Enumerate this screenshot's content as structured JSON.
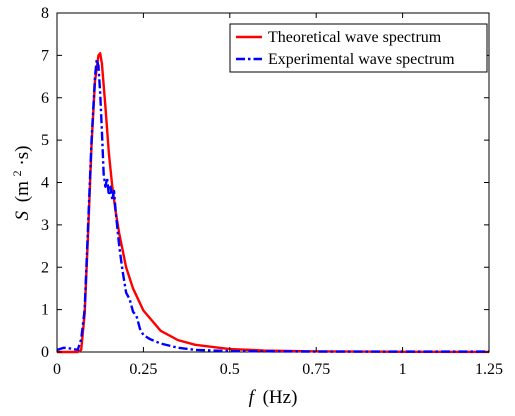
{
  "chart_data": {
    "type": "line",
    "title": "",
    "xlabel": {
      "symbol": "f",
      "unit": "(Hz)"
    },
    "ylabel": {
      "symbol": "S",
      "unit_prefix": "(m",
      "unit_sup": "2",
      "unit_suffix": "·s)"
    },
    "xlim": [
      0,
      1.25
    ],
    "ylim": [
      0,
      8
    ],
    "xticks": [
      0,
      0.25,
      0.5,
      0.75,
      1,
      1.25
    ],
    "xtick_labels": [
      "0",
      "0.25",
      "0.5",
      "0.75",
      "1",
      "1.25"
    ],
    "yticks": [
      0,
      1,
      2,
      3,
      4,
      5,
      6,
      7,
      8
    ],
    "ytick_labels": [
      "0",
      "1",
      "2",
      "3",
      "4",
      "5",
      "6",
      "7",
      "8"
    ],
    "grid": false,
    "legend_position": "top-right",
    "series": [
      {
        "name": "Theoretical wave spectrum",
        "color": "#ff0000",
        "style": "solid",
        "x": [
          0,
          0.06,
          0.07,
          0.08,
          0.09,
          0.1,
          0.11,
          0.12,
          0.125,
          0.13,
          0.14,
          0.15,
          0.16,
          0.17,
          0.18,
          0.2,
          0.22,
          0.25,
          0.3,
          0.35,
          0.4,
          0.5,
          0.6,
          0.75,
          1,
          1.25
        ],
        "y": [
          0,
          0,
          0.05,
          0.9,
          2.8,
          4.9,
          6.4,
          7.0,
          7.05,
          6.8,
          5.8,
          4.7,
          3.9,
          3.3,
          2.8,
          2.0,
          1.5,
          0.98,
          0.5,
          0.28,
          0.17,
          0.07,
          0.035,
          0.014,
          0.005,
          0.002
        ]
      },
      {
        "name": "Experimental wave spectrum",
        "color": "#0000ff",
        "style": "dash-dot",
        "x": [
          0,
          0.02,
          0.04,
          0.06,
          0.07,
          0.08,
          0.09,
          0.1,
          0.11,
          0.115,
          0.12,
          0.125,
          0.13,
          0.135,
          0.14,
          0.145,
          0.15,
          0.155,
          0.16,
          0.165,
          0.17,
          0.18,
          0.19,
          0.2,
          0.21,
          0.22,
          0.23,
          0.24,
          0.25,
          0.27,
          0.3,
          0.35,
          0.4,
          0.5,
          0.75,
          1,
          1.25
        ],
        "y": [
          0.05,
          0.1,
          0.08,
          0.05,
          0.3,
          1.0,
          3.0,
          5.0,
          6.5,
          6.9,
          6.75,
          6.1,
          5.2,
          4.2,
          3.9,
          4.1,
          3.7,
          3.9,
          3.6,
          3.8,
          3.3,
          2.5,
          1.9,
          1.4,
          1.25,
          0.95,
          0.85,
          0.55,
          0.4,
          0.3,
          0.2,
          0.1,
          0.05,
          0.02,
          0.01,
          0.01,
          0.01
        ]
      }
    ]
  }
}
